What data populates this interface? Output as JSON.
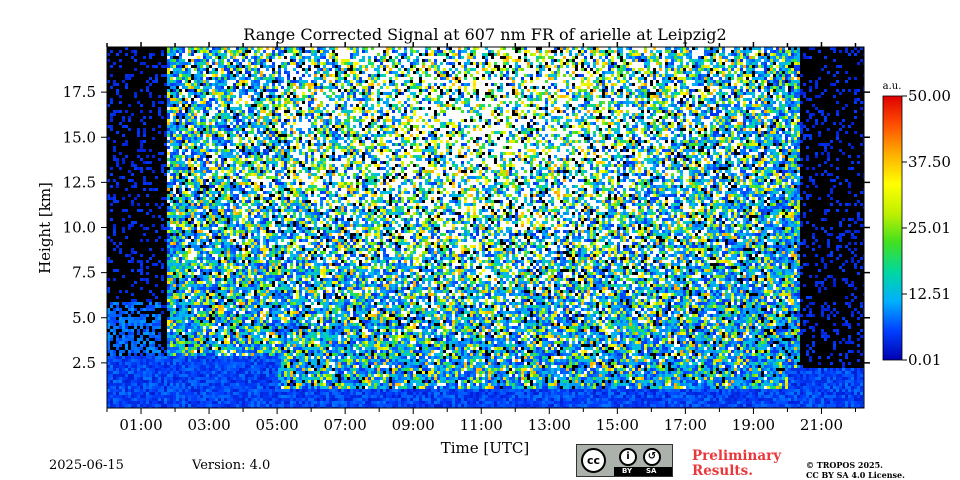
{
  "chart_data": {
    "type": "heatmap",
    "title": "Range Corrected Signal at 607 nm FR of arielle at Leipzig2",
    "xlabel": "Time [UTC]",
    "ylabel": "Height [km]",
    "xlim_hours": [
      0.0,
      22.25
    ],
    "ylim_km": [
      0.0,
      20.0
    ],
    "x_ticks": [
      "01:00",
      "03:00",
      "05:00",
      "07:00",
      "09:00",
      "11:00",
      "13:00",
      "15:00",
      "17:00",
      "19:00",
      "21:00"
    ],
    "x_tick_hours": [
      1,
      3,
      5,
      7,
      9,
      11,
      13,
      15,
      17,
      19,
      21
    ],
    "y_ticks": [
      "2.5",
      "5.0",
      "7.5",
      "10.0",
      "12.5",
      "15.0",
      "17.5"
    ],
    "y_tick_values": [
      2.5,
      5.0,
      7.5,
      10.0,
      12.5,
      15.0,
      17.5
    ],
    "colorbar": {
      "unit": "a.u.",
      "min": 0.01,
      "max": 50.0,
      "ticks": [
        "0.01",
        "12.51",
        "25.01",
        "37.50",
        "50.00"
      ],
      "tick_values": [
        0.01,
        12.51,
        25.01,
        37.5,
        50.0
      ],
      "colormap": [
        "#0000b0",
        "#0040ff",
        "#00b0ff",
        "#00d8a0",
        "#40e020",
        "#c0f000",
        "#ffff00",
        "#ffb000",
        "#ff5000",
        "#e00000"
      ]
    },
    "no_data_color": "#000000",
    "saturated_color": "#ffffff"
  },
  "footer": {
    "date": "2025-06-15",
    "version": "Version: 4.0",
    "license_badge": {
      "by": "BY",
      "sa": "SA"
    },
    "preliminary_line1": "Preliminary",
    "preliminary_line2": "Results.",
    "copyright_line1": "© TROPOS 2025.",
    "copyright_line2": "CC BY SA 4.0 License."
  },
  "colors": {
    "preliminary": "#e8383b",
    "badge_bg": "#aab2ab"
  }
}
